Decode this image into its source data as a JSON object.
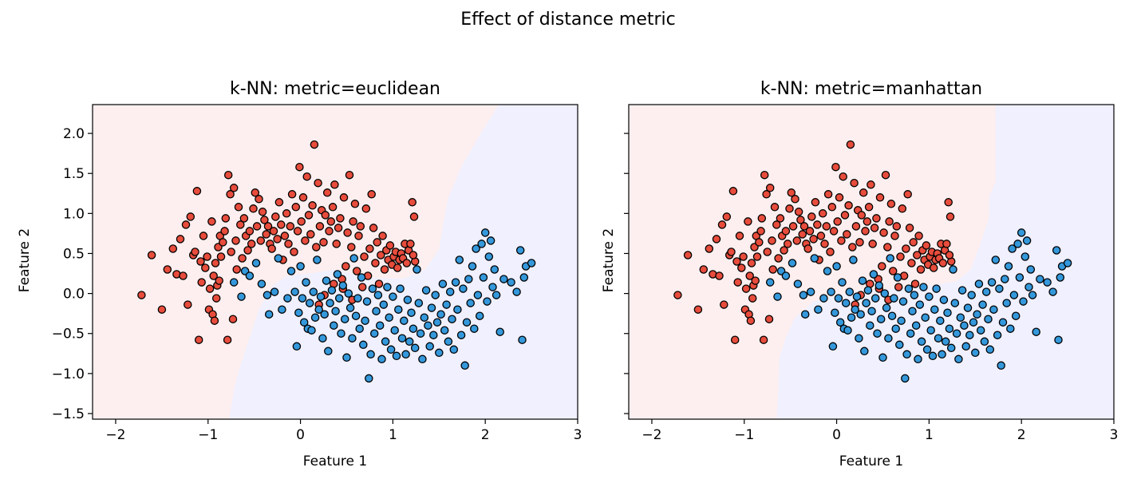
{
  "figure": {
    "suptitle": "Effect of distance metric"
  },
  "colors": {
    "class_0": "#e74c3c",
    "class_1": "#3498db",
    "region_0": "#fdefef",
    "region_1": "#f0f0ff",
    "edge": "#000000"
  },
  "chart_data": [
    {
      "type": "scatter",
      "title": "k-NN: metric=euclidean",
      "xlabel": "Feature 1",
      "ylabel": "Feature 2",
      "xlim": [
        -2.25,
        3.0
      ],
      "ylim": [
        -1.57,
        2.36
      ],
      "xticks": [
        "−2",
        "−1",
        "0",
        "1",
        "2",
        "3"
      ],
      "xtick_values": [
        -2,
        -1,
        0,
        1,
        2,
        3
      ],
      "yticks": [
        "−1.5",
        "−1.0",
        "−0.5",
        "0.0",
        "0.5",
        "1.0",
        "1.5",
        "2.0"
      ],
      "ytick_values": [
        -1.5,
        -1.0,
        -0.5,
        0.0,
        0.5,
        1.0,
        1.5,
        2.0
      ],
      "show_ytick_labels": true,
      "decision_boundary": [
        [
          -0.77,
          -1.57
        ],
        [
          -0.72,
          -1.2
        ],
        [
          -0.65,
          -0.9
        ],
        [
          -0.55,
          -0.55
        ],
        [
          -0.45,
          -0.2
        ],
        [
          -0.3,
          0.1
        ],
        [
          -0.15,
          0.22
        ],
        [
          0.1,
          0.25
        ],
        [
          0.4,
          0.3
        ],
        [
          0.7,
          0.2
        ],
        [
          1.1,
          0.18
        ],
        [
          1.35,
          0.3
        ],
        [
          1.5,
          0.55
        ],
        [
          1.55,
          0.9
        ],
        [
          1.6,
          1.2
        ],
        [
          1.75,
          1.6
        ],
        [
          1.95,
          2.0
        ],
        [
          2.15,
          2.36
        ]
      ],
      "series": []
    },
    {
      "type": "scatter",
      "title": "k-NN: metric=manhattan",
      "xlabel": "Feature 1",
      "ylabel": "Feature 2",
      "xlim": [
        -2.25,
        3.0
      ],
      "ylim": [
        -1.57,
        2.36
      ],
      "xticks": [
        "−2",
        "−1",
        "0",
        "1",
        "2",
        "3"
      ],
      "xtick_values": [
        -2,
        -1,
        0,
        1,
        2,
        3
      ],
      "yticks": [
        "−1.5",
        "−1.0",
        "−0.5",
        "0.0",
        "0.5",
        "1.0",
        "1.5",
        "2.0"
      ],
      "ytick_values": [
        -1.5,
        -1.0,
        -0.5,
        0.0,
        0.5,
        1.0,
        1.5,
        2.0
      ],
      "show_ytick_labels": false,
      "decision_boundary": [
        [
          -0.65,
          -1.57
        ],
        [
          -0.63,
          -1.2
        ],
        [
          -0.62,
          -0.8
        ],
        [
          -0.55,
          -0.55
        ],
        [
          -0.45,
          -0.3
        ],
        [
          -0.25,
          -0.1
        ],
        [
          0.1,
          0.0
        ],
        [
          0.5,
          0.05
        ],
        [
          1.0,
          0.1
        ],
        [
          1.3,
          0.15
        ],
        [
          1.45,
          0.3
        ],
        [
          1.55,
          0.6
        ],
        [
          1.65,
          0.95
        ],
        [
          1.65,
          1.2
        ],
        [
          1.72,
          1.4
        ],
        [
          1.72,
          1.8
        ],
        [
          1.72,
          2.36
        ]
      ],
      "series": []
    }
  ],
  "points": {
    "class_0": [
      [
        -1.72,
        -0.02
      ],
      [
        -1.61,
        0.48
      ],
      [
        -1.5,
        -0.2
      ],
      [
        -1.44,
        0.3
      ],
      [
        -1.38,
        0.56
      ],
      [
        -1.34,
        0.24
      ],
      [
        -1.3,
        0.68
      ],
      [
        -1.27,
        0.22
      ],
      [
        -1.24,
        0.86
      ],
      [
        -1.22,
        -0.14
      ],
      [
        -1.19,
        0.96
      ],
      [
        -1.16,
        0.48
      ],
      [
        -1.14,
        0.52
      ],
      [
        -1.12,
        1.28
      ],
      [
        -1.1,
        -0.58
      ],
      [
        -1.08,
        0.4
      ],
      [
        -1.07,
        0.14
      ],
      [
        -1.05,
        0.72
      ],
      [
        -1.03,
        0.32
      ],
      [
        -1.01,
        0.46
      ],
      [
        -0.99,
        -0.2
      ],
      [
        -0.98,
        0.06
      ],
      [
        -0.96,
        0.9
      ],
      [
        -0.95,
        -0.26
      ],
      [
        -0.94,
        0.22
      ],
      [
        -0.93,
        -0.34
      ],
      [
        -0.92,
        0.38
      ],
      [
        -0.91,
        -0.06
      ],
      [
        -0.9,
        0.1
      ],
      [
        -0.89,
        0.58
      ],
      [
        -0.88,
        0.16
      ],
      [
        -0.87,
        0.72
      ],
      [
        -0.86,
        0.46
      ],
      [
        -0.84,
        0.64
      ],
      [
        -0.82,
        0.78
      ],
      [
        -0.81,
        0.94
      ],
      [
        -0.79,
        -0.58
      ],
      [
        -0.78,
        1.48
      ],
      [
        -0.76,
        1.24
      ],
      [
        -0.75,
        0.52
      ],
      [
        -0.73,
        -0.32
      ],
      [
        -0.72,
        1.32
      ],
      [
        -0.7,
        0.66
      ],
      [
        -0.69,
        0.3
      ],
      [
        -0.67,
        1.08
      ],
      [
        -0.65,
        0.86
      ],
      [
        -0.63,
        0.44
      ],
      [
        -0.61,
        0.94
      ],
      [
        -0.59,
        0.72
      ],
      [
        -0.57,
        0.54
      ],
      [
        -0.55,
        0.78
      ],
      [
        -0.53,
        0.62
      ],
      [
        -0.51,
        1.06
      ],
      [
        -0.49,
        1.26
      ],
      [
        -0.47,
        0.84
      ],
      [
        -0.45,
        1.18
      ],
      [
        -0.43,
        0.66
      ],
      [
        -0.41,
        1.02
      ],
      [
        -0.39,
        0.92
      ],
      [
        -0.37,
        0.74
      ],
      [
        -0.35,
        0.84
      ],
      [
        -0.33,
        0.62
      ],
      [
        -0.31,
        0.56
      ],
      [
        -0.29,
        0.78
      ],
      [
        -0.27,
        0.96
      ],
      [
        -0.25,
        0.68
      ],
      [
        -0.23,
        1.14
      ],
      [
        -0.21,
        0.86
      ],
      [
        -0.19,
        0.42
      ],
      [
        -0.17,
        0.72
      ],
      [
        -0.15,
        1.0
      ],
      [
        -0.13,
        0.62
      ],
      [
        -0.11,
        0.84
      ],
      [
        -0.09,
        1.24
      ],
      [
        -0.07,
        0.52
      ],
      [
        -0.05,
        1.08
      ],
      [
        -0.03,
        0.78
      ],
      [
        -0.01,
        1.58
      ],
      [
        0.01,
        0.9
      ],
      [
        0.03,
        1.2
      ],
      [
        0.05,
        0.66
      ],
      [
        0.07,
        1.46
      ],
      [
        0.09,
        0.98
      ],
      [
        0.11,
        0.74
      ],
      [
        0.13,
        1.1
      ],
      [
        0.15,
        1.86
      ],
      [
        0.17,
        0.58
      ],
      [
        0.19,
        1.38
      ],
      [
        0.21,
        0.84
      ],
      [
        0.23,
        1.04
      ],
      [
        0.25,
        0.64
      ],
      [
        0.27,
        0.98
      ],
      [
        0.29,
        1.26
      ],
      [
        0.31,
        0.78
      ],
      [
        0.33,
        0.9
      ],
      [
        0.35,
        1.08
      ],
      [
        0.37,
        1.36
      ],
      [
        0.39,
        0.62
      ],
      [
        0.41,
        0.82
      ],
      [
        0.43,
        0.94
      ],
      [
        0.45,
        0.18
      ],
      [
        0.47,
        1.2
      ],
      [
        0.49,
        0.34
      ],
      [
        0.51,
        0.76
      ],
      [
        0.53,
        1.48
      ],
      [
        0.55,
        0.58
      ],
      [
        0.57,
        0.9
      ],
      [
        0.59,
        1.12
      ],
      [
        0.61,
        0.28
      ],
      [
        0.63,
        0.72
      ],
      [
        0.65,
        0.84
      ],
      [
        0.67,
        0.08
      ],
      [
        0.69,
        0.46
      ],
      [
        0.71,
        1.06
      ],
      [
        0.73,
        0.22
      ],
      [
        0.75,
        0.56
      ],
      [
        0.77,
        1.24
      ],
      [
        0.79,
        0.82
      ],
      [
        0.81,
        0.38
      ],
      [
        0.83,
        0.64
      ],
      [
        0.85,
        0.12
      ],
      [
        0.87,
        0.48
      ],
      [
        0.89,
        0.72
      ],
      [
        0.91,
        0.3
      ],
      [
        0.93,
        0.54
      ],
      [
        0.95,
        0.42
      ],
      [
        0.97,
        0.6
      ],
      [
        0.99,
        0.36
      ],
      [
        1.01,
        0.46
      ],
      [
        1.03,
        0.52
      ],
      [
        1.05,
        0.32
      ],
      [
        1.07,
        0.42
      ],
      [
        1.09,
        0.5
      ],
      [
        1.11,
        0.44
      ],
      [
        1.13,
        0.62
      ],
      [
        1.15,
        0.38
      ],
      [
        1.17,
        0.54
      ],
      [
        1.19,
        0.62
      ],
      [
        1.21,
        1.14
      ],
      [
        1.23,
        0.96
      ],
      [
        1.24,
        0.4
      ],
      [
        1.22,
        0.48
      ],
      [
        0.2,
        -0.14
      ],
      [
        0.26,
        -0.02
      ],
      [
        0.36,
        0.12
      ],
      [
        0.46,
        0.06
      ],
      [
        0.56,
        -0.08
      ]
    ],
    "class_1": [
      [
        -0.72,
        0.14
      ],
      [
        -0.64,
        -0.04
      ],
      [
        -0.6,
        0.28
      ],
      [
        -0.55,
        0.22
      ],
      [
        -0.48,
        0.38
      ],
      [
        -0.42,
        0.12
      ],
      [
        -0.36,
        -0.02
      ],
      [
        -0.34,
        -0.26
      ],
      [
        -0.28,
        0.02
      ],
      [
        -0.24,
        0.44
      ],
      [
        -0.2,
        -0.2
      ],
      [
        -0.14,
        -0.06
      ],
      [
        -0.1,
        0.28
      ],
      [
        -0.06,
        0.02
      ],
      [
        -0.04,
        -0.66
      ],
      [
        -0.02,
        -0.24
      ],
      [
        0.0,
        0.34
      ],
      [
        0.02,
        -0.06
      ],
      [
        0.04,
        -0.36
      ],
      [
        0.06,
        0.14
      ],
      [
        0.08,
        -0.44
      ],
      [
        0.1,
        -0.12
      ],
      [
        0.12,
        -0.46
      ],
      [
        0.14,
        0.02
      ],
      [
        0.16,
        -0.3
      ],
      [
        0.18,
        0.42
      ],
      [
        0.2,
        -0.2
      ],
      [
        0.22,
        -0.04
      ],
      [
        0.24,
        -0.56
      ],
      [
        0.26,
        -0.26
      ],
      [
        0.28,
        0.16
      ],
      [
        0.3,
        -0.72
      ],
      [
        0.32,
        -0.12
      ],
      [
        0.34,
        0.04
      ],
      [
        0.36,
        -0.4
      ],
      [
        0.38,
        -0.22
      ],
      [
        0.4,
        0.24
      ],
      [
        0.42,
        -0.06
      ],
      [
        0.44,
        -0.5
      ],
      [
        0.46,
        0.1
      ],
      [
        0.48,
        -0.32
      ],
      [
        0.5,
        -0.8
      ],
      [
        0.52,
        0.0
      ],
      [
        0.54,
        -0.18
      ],
      [
        0.56,
        -0.56
      ],
      [
        0.58,
        0.44
      ],
      [
        0.6,
        -0.28
      ],
      [
        0.62,
        -0.06
      ],
      [
        0.64,
        -0.44
      ],
      [
        0.66,
        0.2
      ],
      [
        0.68,
        -0.64
      ],
      [
        0.7,
        -0.34
      ],
      [
        0.72,
        -0.1
      ],
      [
        0.74,
        -1.06
      ],
      [
        0.76,
        -0.76
      ],
      [
        0.78,
        0.06
      ],
      [
        0.8,
        -0.5
      ],
      [
        0.82,
        -0.22
      ],
      [
        0.84,
        -0.02
      ],
      [
        0.86,
        -0.4
      ],
      [
        0.88,
        -0.82
      ],
      [
        0.9,
        -0.14
      ],
      [
        0.92,
        -0.6
      ],
      [
        0.94,
        0.08
      ],
      [
        0.96,
        -0.3
      ],
      [
        0.98,
        -0.7
      ],
      [
        1.0,
        -0.04
      ],
      [
        1.02,
        -0.46
      ],
      [
        1.04,
        -0.78
      ],
      [
        1.06,
        -0.2
      ],
      [
        1.08,
        0.06
      ],
      [
        1.1,
        -0.56
      ],
      [
        1.12,
        -0.34
      ],
      [
        1.14,
        -0.76
      ],
      [
        1.16,
        -0.08
      ],
      [
        1.18,
        -0.6
      ],
      [
        1.2,
        -0.24
      ],
      [
        1.22,
        -0.44
      ],
      [
        1.24,
        -0.68
      ],
      [
        1.26,
        0.3
      ],
      [
        1.28,
        -0.12
      ],
      [
        1.3,
        -0.5
      ],
      [
        1.32,
        -0.82
      ],
      [
        1.34,
        -0.3
      ],
      [
        1.36,
        0.04
      ],
      [
        1.38,
        -0.4
      ],
      [
        1.4,
        -0.66
      ],
      [
        1.42,
        -0.18
      ],
      [
        1.44,
        -0.52
      ],
      [
        1.46,
        -0.02
      ],
      [
        1.48,
        -0.36
      ],
      [
        1.5,
        -0.74
      ],
      [
        1.52,
        -0.26
      ],
      [
        1.54,
        0.12
      ],
      [
        1.56,
        -0.46
      ],
      [
        1.58,
        -0.14
      ],
      [
        1.6,
        -0.6
      ],
      [
        1.62,
        0.02
      ],
      [
        1.64,
        -0.32
      ],
      [
        1.66,
        -0.7
      ],
      [
        1.68,
        0.14
      ],
      [
        1.7,
        -0.2
      ],
      [
        1.72,
        0.42
      ],
      [
        1.74,
        -0.52
      ],
      [
        1.76,
        0.06
      ],
      [
        1.78,
        -0.9
      ],
      [
        1.8,
        -0.36
      ],
      [
        1.82,
        0.18
      ],
      [
        1.84,
        -0.12
      ],
      [
        1.86,
        0.34
      ],
      [
        1.88,
        -0.44
      ],
      [
        1.9,
        0.56
      ],
      [
        1.92,
        -0.02
      ],
      [
        1.94,
        -0.28
      ],
      [
        1.96,
        0.62
      ],
      [
        1.98,
        0.2
      ],
      [
        2.0,
        0.76
      ],
      [
        2.02,
        -0.1
      ],
      [
        2.04,
        0.46
      ],
      [
        2.06,
        0.66
      ],
      [
        2.08,
        0.08
      ],
      [
        2.1,
        0.3
      ],
      [
        2.12,
        -0.02
      ],
      [
        2.16,
        -0.48
      ],
      [
        2.2,
        0.18
      ],
      [
        2.28,
        0.14
      ],
      [
        2.34,
        0.02
      ],
      [
        2.38,
        0.54
      ],
      [
        2.4,
        -0.58
      ],
      [
        2.42,
        0.2
      ],
      [
        2.44,
        0.34
      ],
      [
        2.5,
        0.38
      ]
    ]
  }
}
